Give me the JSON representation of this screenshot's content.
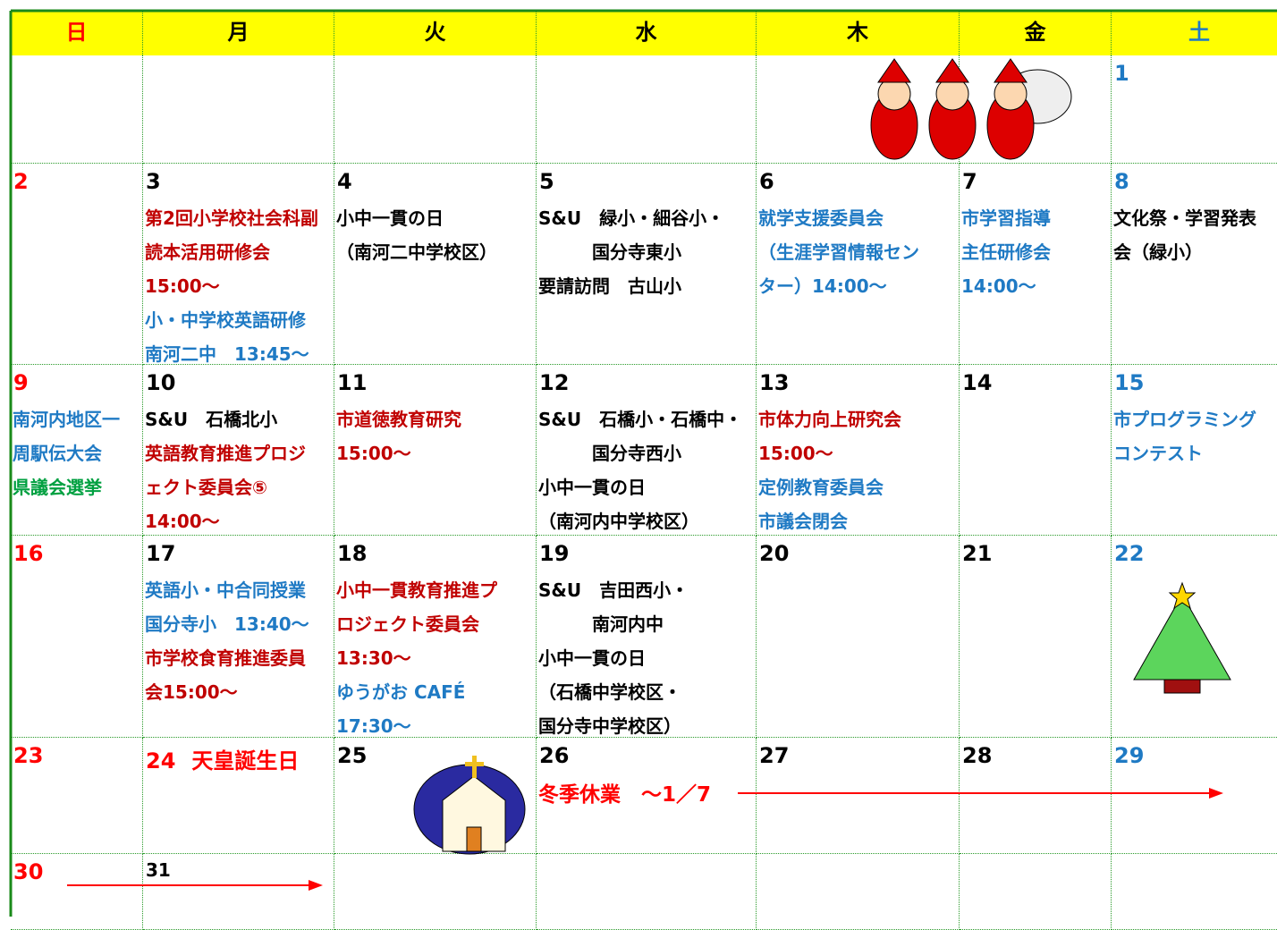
{
  "headers": [
    {
      "text": "日",
      "color": "#ff0000"
    },
    {
      "text": "月",
      "color": "#000000"
    },
    {
      "text": "火",
      "color": "#000000"
    },
    {
      "text": "水",
      "color": "#000000"
    },
    {
      "text": "木",
      "color": "#000000"
    },
    {
      "text": "金",
      "color": "#000000"
    },
    {
      "text": "土",
      "color": "#1f7ac4"
    }
  ],
  "weeks": [
    [
      null,
      null,
      null,
      null,
      null,
      null,
      {
        "day": "1"
      }
    ],
    [
      {
        "day": "2"
      },
      {
        "day": "3",
        "lines": [
          {
            "text": "第2回小学校社会科副",
            "color": "#c00000"
          },
          {
            "text": "読本活用研修会",
            "color": "#c00000"
          },
          {
            "text": "15:00～",
            "color": "#c00000"
          },
          {
            "text": "小・中学校英語研修",
            "color": "#1f7ac4"
          },
          {
            "text": "南河二中　13:45～",
            "color": "#1f7ac4"
          }
        ]
      },
      {
        "day": "4",
        "lines": [
          {
            "text": "小中一貫の日",
            "color": "#000000"
          },
          {
            "text": "（南河二中学校区）",
            "color": "#000000"
          }
        ]
      },
      {
        "day": "5",
        "lines": [
          {
            "text": "S&U　緑小・細谷小・",
            "color": "#000000"
          },
          {
            "text": "　　　国分寺東小",
            "color": "#000000"
          },
          {
            "text": "要請訪問　古山小",
            "color": "#000000"
          }
        ]
      },
      {
        "day": "6",
        "lines": [
          {
            "text": "就学支援委員会",
            "color": "#1f7ac4"
          },
          {
            "text": "（生涯学習情報セン",
            "color": "#1f7ac4"
          },
          {
            "text": "ター）14:00～",
            "color": "#1f7ac4"
          }
        ]
      },
      {
        "day": "7",
        "lines": [
          {
            "text": "市学習指導",
            "color": "#1f7ac4"
          },
          {
            "text": "主任研修会",
            "color": "#1f7ac4"
          },
          {
            "text": "14:00～",
            "color": "#1f7ac4"
          }
        ]
      },
      {
        "day": "8",
        "lines": [
          {
            "text": "文化祭・学習発表",
            "color": "#000000"
          },
          {
            "text": "会（緑小）",
            "color": "#000000"
          }
        ]
      }
    ],
    [
      {
        "day": "9",
        "lines": [
          {
            "text": "南河内地区一",
            "color": "#1f7ac4"
          },
          {
            "text": "周駅伝大会",
            "color": "#1f7ac4"
          },
          {
            "text": "県議会選挙",
            "color": "#00a040"
          }
        ]
      },
      {
        "day": "10",
        "lines": [
          {
            "text": "S&U　石橋北小",
            "color": "#000000"
          },
          {
            "text": "英語教育推進プロジ",
            "color": "#c00000"
          },
          {
            "text": "ェクト委員会⑤",
            "color": "#c00000"
          },
          {
            "text": "14:00～",
            "color": "#c00000"
          }
        ]
      },
      {
        "day": "11",
        "lines": [
          {
            "text": "市道徳教育研究",
            "color": "#c00000"
          },
          {
            "text": "15:00～",
            "color": "#c00000"
          }
        ]
      },
      {
        "day": "12",
        "lines": [
          {
            "text": "S&U　石橋小・石橋中・",
            "color": "#000000"
          },
          {
            "text": "　　　国分寺西小",
            "color": "#000000"
          },
          {
            "text": "小中一貫の日",
            "color": "#000000"
          },
          {
            "text": "（南河内中学校区）",
            "color": "#000000"
          }
        ]
      },
      {
        "day": "13",
        "lines": [
          {
            "text": "市体力向上研究会",
            "color": "#c00000"
          },
          {
            "text": "15:00～",
            "color": "#c00000"
          },
          {
            "text": "定例教育委員会",
            "color": "#1f7ac4"
          },
          {
            "text": "市議会閉会",
            "color": "#1f7ac4"
          }
        ]
      },
      {
        "day": "14"
      },
      {
        "day": "15",
        "lines": [
          {
            "text": "市プログラミング",
            "color": "#1f7ac4"
          },
          {
            "text": "コンテスト",
            "color": "#1f7ac4"
          }
        ]
      }
    ],
    [
      {
        "day": "16"
      },
      {
        "day": "17",
        "lines": [
          {
            "text": "英語小・中合同授業",
            "color": "#1f7ac4"
          },
          {
            "text": "国分寺小　13:40～",
            "color": "#1f7ac4"
          },
          {
            "text": "市学校食育推進委員",
            "color": "#c00000"
          },
          {
            "text": "会15:00～",
            "color": "#c00000"
          }
        ]
      },
      {
        "day": "18",
        "lines": [
          {
            "text": "小中一貫教育推進プ",
            "color": "#c00000"
          },
          {
            "text": "ロジェクト委員会",
            "color": "#c00000"
          },
          {
            "text": "13:30～",
            "color": "#c00000"
          },
          {
            "text": "ゆうがお CAFÉ",
            "color": "#1f7ac4"
          },
          {
            "text": "17:30～",
            "color": "#1f7ac4"
          }
        ]
      },
      {
        "day": "19",
        "lines": [
          {
            "text": "S&U　吉田西小・",
            "color": "#000000"
          },
          {
            "text": "　　　南河内中",
            "color": "#000000"
          },
          {
            "text": "小中一貫の日",
            "color": "#000000"
          },
          {
            "text": "（石橋中学校区・",
            "color": "#000000"
          },
          {
            "text": "国分寺中学校区）",
            "color": "#000000"
          }
        ]
      },
      {
        "day": "20"
      },
      {
        "day": "21"
      },
      {
        "day": "22"
      }
    ],
    [
      {
        "day": "23"
      },
      {
        "day": "24",
        "note": "天皇誕生日",
        "day_color": "#ff0000"
      },
      {
        "day": "25"
      },
      {
        "day": "26",
        "lines": [
          {
            "text": "冬季休業　～1／7",
            "color": "#ff0000"
          }
        ]
      },
      {
        "day": "27"
      },
      {
        "day": "28"
      },
      {
        "day": "29"
      }
    ],
    [
      {
        "day": "30"
      },
      {
        "day": "31"
      },
      null,
      null,
      null,
      null,
      null
    ]
  ]
}
